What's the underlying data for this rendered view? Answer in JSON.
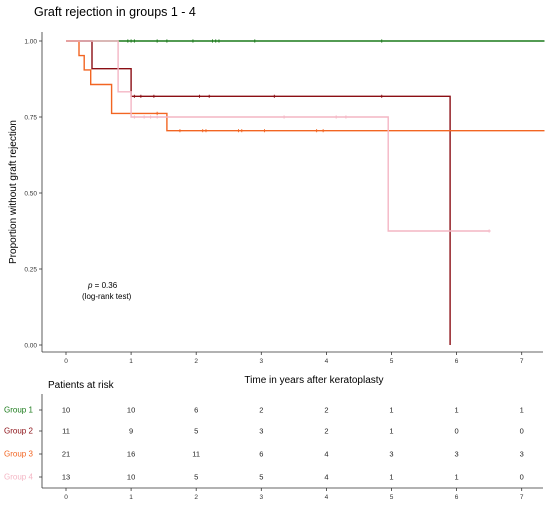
{
  "chart_data": {
    "type": "line",
    "subtype": "kaplan-meier step",
    "title": "Graft rejection in groups 1 - 4",
    "xlabel": "Time in years after keratoplasty",
    "ylabel": "Proportion without graft rejection",
    "xlim": [
      -0.35,
      7.35
    ],
    "ylim": [
      0,
      1
    ],
    "x_ticks": [
      "0",
      "1",
      "2",
      "3",
      "4",
      "5",
      "6",
      "7"
    ],
    "y_ticks": [
      "0.00",
      "0.25",
      "0.50",
      "0.75",
      "1.00"
    ],
    "grid": false,
    "annotation": {
      "p_label": "p",
      "p_value": " = 0.36",
      "test": "(log-rank test)"
    },
    "colors": {
      "Group 1": "#1a7a1a",
      "Group 2": "#8b0e14",
      "Group 3": "#f26522",
      "Group 4": "#f4b6c4"
    },
    "series": [
      {
        "name": "Group 1",
        "color": "#1a7a1a",
        "steps": [
          [
            0,
            1.0
          ],
          [
            7.35,
            1.0
          ]
        ],
        "censors": [
          [
            0.95,
            1.0
          ],
          [
            1.0,
            1.0
          ],
          [
            1.05,
            1.0
          ],
          [
            1.4,
            1.0
          ],
          [
            1.55,
            1.0
          ],
          [
            1.95,
            1.0
          ],
          [
            2.25,
            1.0
          ],
          [
            2.3,
            1.0
          ],
          [
            2.35,
            1.0
          ],
          [
            2.9,
            1.0
          ],
          [
            4.85,
            1.0
          ]
        ]
      },
      {
        "name": "Group 2",
        "color": "#8b0e14",
        "steps": [
          [
            0,
            1.0
          ],
          [
            0.4,
            1.0
          ],
          [
            0.4,
            0.909
          ],
          [
            1.0,
            0.909
          ],
          [
            1.0,
            0.818
          ],
          [
            5.9,
            0.818
          ],
          [
            5.9,
            0.0
          ]
        ],
        "censors": [
          [
            1.05,
            0.818
          ],
          [
            1.15,
            0.818
          ],
          [
            1.35,
            0.818
          ],
          [
            2.05,
            0.818
          ],
          [
            2.2,
            0.818
          ],
          [
            3.2,
            0.818
          ],
          [
            4.85,
            0.818
          ]
        ]
      },
      {
        "name": "Group 3",
        "color": "#f26522",
        "steps": [
          [
            0,
            1.0
          ],
          [
            0.2,
            1.0
          ],
          [
            0.2,
            0.952
          ],
          [
            0.28,
            0.952
          ],
          [
            0.28,
            0.905
          ],
          [
            0.38,
            0.905
          ],
          [
            0.38,
            0.857
          ],
          [
            0.7,
            0.857
          ],
          [
            0.7,
            0.762
          ],
          [
            1.55,
            0.762
          ],
          [
            1.55,
            0.705
          ],
          [
            7.35,
            0.705
          ]
        ],
        "censors": [
          [
            1.4,
            0.762
          ],
          [
            1.75,
            0.705
          ],
          [
            2.1,
            0.705
          ],
          [
            2.15,
            0.705
          ],
          [
            2.65,
            0.705
          ],
          [
            2.7,
            0.705
          ],
          [
            3.05,
            0.705
          ],
          [
            3.85,
            0.705
          ],
          [
            3.95,
            0.705
          ]
        ]
      },
      {
        "name": "Group 4",
        "color": "#f4b6c4",
        "steps": [
          [
            0,
            1.0
          ],
          [
            0.8,
            1.0
          ],
          [
            0.8,
            0.833
          ],
          [
            1.0,
            0.833
          ],
          [
            1.0,
            0.75
          ],
          [
            4.95,
            0.75
          ],
          [
            4.95,
            0.375
          ],
          [
            6.5,
            0.375
          ]
        ],
        "censors": [
          [
            1.05,
            0.75
          ],
          [
            1.2,
            0.75
          ],
          [
            1.3,
            0.75
          ],
          [
            1.4,
            0.75
          ],
          [
            3.35,
            0.75
          ],
          [
            4.15,
            0.75
          ],
          [
            4.3,
            0.75
          ],
          [
            6.5,
            0.375
          ]
        ]
      }
    ],
    "risk_table": {
      "title": "Patients at risk",
      "times": [
        "0",
        "1",
        "2",
        "3",
        "4",
        "5",
        "6",
        "7"
      ],
      "rows": [
        {
          "group": "Group 1",
          "color": "#1a7a1a",
          "values": [
            "10",
            "10",
            "6",
            "2",
            "2",
            "1",
            "1",
            "1"
          ]
        },
        {
          "group": "Group 2",
          "color": "#8b0e14",
          "values": [
            "11",
            "9",
            "5",
            "3",
            "2",
            "1",
            "0",
            "0"
          ]
        },
        {
          "group": "Group 3",
          "color": "#f26522",
          "values": [
            "21",
            "16",
            "11",
            "6",
            "4",
            "3",
            "3",
            "3"
          ]
        },
        {
          "group": "Group 4",
          "color": "#f4b6c4",
          "values": [
            "13",
            "10",
            "5",
            "5",
            "4",
            "1",
            "1",
            "0"
          ]
        }
      ]
    }
  }
}
